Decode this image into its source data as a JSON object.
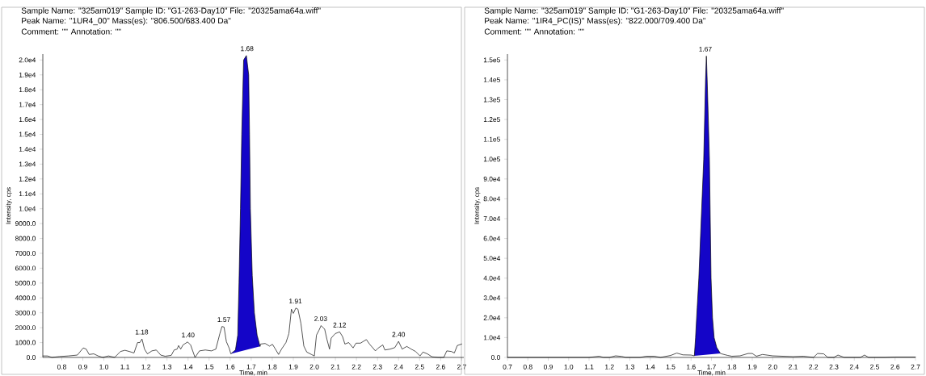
{
  "chart_data": [
    {
      "type": "line",
      "title": "Sample Name: \"325am019\"    Sample ID: \"G1-263-Day10\"    File: \"20325ama64a.wiff\"",
      "subtitle": "Peak Name: \"1UR4_00\"    Mass(es): \"806.500/683.400 Da\"",
      "xlabel": "Time, min",
      "ylabel": "Intensity, cps",
      "annotations": [
        "Comment: \"\"    Annotation: \"\"",
        {
          "text": "1.18",
          "x": 1.18,
          "y": 1240
        },
        {
          "text": "1.40",
          "x": 1.4,
          "y": 1040
        },
        {
          "text": "1.57",
          "x": 1.57,
          "y": 2080
        },
        {
          "text": "1.68",
          "x": 1.68,
          "y": 20300
        },
        {
          "text": "1.91",
          "x": 1.91,
          "y": 3320
        },
        {
          "text": "2.03",
          "x": 2.03,
          "y": 2140
        },
        {
          "text": "2.12",
          "x": 2.12,
          "y": 1720
        },
        {
          "text": "2.40",
          "x": 2.4,
          "y": 1080
        }
      ],
      "xlim": [
        0.71,
        2.71
      ],
      "ylim": [
        0,
        20400
      ],
      "xticks": [
        {
          "value": 0.8,
          "label": "0.8"
        },
        {
          "value": 0.9,
          "label": "0.9"
        },
        {
          "value": 1.0,
          "label": "1.0"
        },
        {
          "value": 1.1,
          "label": "1.1"
        },
        {
          "value": 1.2,
          "label": "1.2"
        },
        {
          "value": 1.3,
          "label": "1.3"
        },
        {
          "value": 1.4,
          "label": "1.4"
        },
        {
          "value": 1.5,
          "label": "1.5"
        },
        {
          "value": 1.6,
          "label": "1.6"
        },
        {
          "value": 1.7,
          "label": "1.7"
        },
        {
          "value": 1.8,
          "label": "1.8"
        },
        {
          "value": 1.9,
          "label": "1.9"
        },
        {
          "value": 2.0,
          "label": "2.0"
        },
        {
          "value": 2.1,
          "label": "2.1"
        },
        {
          "value": 2.2,
          "label": "2.2"
        },
        {
          "value": 2.3,
          "label": "2.3"
        },
        {
          "value": 2.4,
          "label": "2.4"
        },
        {
          "value": 2.5,
          "label": "2.5"
        },
        {
          "value": 2.6,
          "label": "2.6"
        },
        {
          "value": 2.7,
          "label": "2.7"
        }
      ],
      "yticks": [
        {
          "value": 0,
          "label": "0.0"
        },
        {
          "value": 1000,
          "label": "1000.0"
        },
        {
          "value": 2000,
          "label": "2000.0"
        },
        {
          "value": 3000,
          "label": "3000.0"
        },
        {
          "value": 4000,
          "label": "4000.0"
        },
        {
          "value": 5000,
          "label": "5000.0"
        },
        {
          "value": 6000,
          "label": "6000.0"
        },
        {
          "value": 7000,
          "label": "7000.0"
        },
        {
          "value": 8000,
          "label": "8000.0"
        },
        {
          "value": 9000,
          "label": "9000.0"
        },
        {
          "value": 10000,
          "label": "1.0e4"
        },
        {
          "value": 11000,
          "label": "1.1e4"
        },
        {
          "value": 12000,
          "label": "1.2e4"
        },
        {
          "value": 13000,
          "label": "1.3e4"
        },
        {
          "value": 14000,
          "label": "1.4e4"
        },
        {
          "value": 15000,
          "label": "1.5e4"
        },
        {
          "value": 16000,
          "label": "1.6e4"
        },
        {
          "value": 17000,
          "label": "1.7e4"
        },
        {
          "value": 18000,
          "label": "1.8e4"
        },
        {
          "value": 19000,
          "label": "1.9e4"
        },
        {
          "value": 20000,
          "label": "2.0e4"
        }
      ],
      "series": [
        {
          "type": "area",
          "color": "#1405c8",
          "x": [
            1.603,
            1.625,
            1.636,
            1.642,
            1.649,
            1.655,
            1.664,
            1.677,
            1.688,
            1.692,
            1.696,
            1.705,
            1.715,
            1.728,
            1.742
          ],
          "values": [
            240,
            500,
            1500,
            5000,
            10000,
            15000,
            20000,
            20300,
            19000,
            15000,
            10000,
            5500,
            3000,
            1500,
            740
          ]
        },
        {
          "color": "#000000",
          "x": [
            0.711,
            0.732,
            0.753,
            0.789,
            0.831,
            0.874,
            0.902,
            0.916,
            0.93,
            0.952,
            0.973,
            0.994,
            1.022,
            1.051,
            1.079,
            1.1,
            1.121,
            1.143,
            1.16,
            1.171,
            1.181,
            1.193,
            1.207,
            1.228,
            1.249,
            1.27,
            1.291,
            1.32,
            1.334,
            1.348,
            1.355,
            1.365,
            1.376,
            1.398,
            1.412,
            1.433,
            1.454,
            1.482,
            1.511,
            1.532,
            1.551,
            1.561,
            1.571,
            1.582,
            1.596,
            1.603,
            1.625,
            1.636,
            1.642,
            1.649,
            1.655,
            1.664,
            1.677,
            1.688,
            1.692,
            1.696,
            1.705,
            1.715,
            1.728,
            1.742,
            1.745,
            1.766,
            1.787,
            1.801,
            1.815,
            1.83,
            1.844,
            1.865,
            1.879,
            1.891,
            1.9,
            1.912,
            1.922,
            1.936,
            1.95,
            1.964,
            1.986,
            2.0,
            2.01,
            2.021,
            2.032,
            2.049,
            2.06,
            2.072,
            2.08,
            2.099,
            2.12,
            2.134,
            2.145,
            2.163,
            2.184,
            2.198,
            2.219,
            2.247,
            2.262,
            2.29,
            2.304,
            2.325,
            2.335,
            2.36,
            2.382,
            2.4,
            2.417,
            2.439,
            2.46,
            2.481,
            2.502,
            2.516,
            2.537,
            2.559,
            2.587,
            2.615,
            2.629,
            2.651,
            2.665,
            2.679,
            2.7
          ],
          "values": [
            100,
            100,
            0,
            60,
            100,
            160,
            640,
            560,
            200,
            240,
            100,
            0,
            100,
            0,
            400,
            480,
            400,
            300,
            1000,
            1000,
            1240,
            560,
            240,
            440,
            500,
            160,
            80,
            140,
            500,
            560,
            800,
            560,
            840,
            1040,
            840,
            0,
            440,
            500,
            440,
            560,
            1600,
            2080,
            2040,
            1060,
            600,
            240,
            500,
            1500,
            5000,
            10000,
            15000,
            20000,
            20300,
            19000,
            15000,
            10000,
            5500,
            3000,
            1500,
            740,
            900,
            940,
            760,
            880,
            560,
            200,
            560,
            1000,
            1600,
            3240,
            2960,
            3320,
            3240,
            2300,
            760,
            360,
            200,
            100,
            1500,
            1800,
            2140,
            1900,
            1200,
            560,
            1300,
            1600,
            1720,
            1400,
            900,
            1000,
            640,
            960,
            960,
            1200,
            900,
            440,
            640,
            840,
            500,
            560,
            660,
            1080,
            560,
            740,
            560,
            400,
            100,
            360,
            240,
            40,
            0,
            0,
            440,
            400,
            300,
            800,
            900
          ]
        }
      ]
    },
    {
      "type": "line",
      "title": "Sample Name: \"325am019\"    Sample ID: \"G1-263-Day10\"    File: \"20325ama64a.wiff\"",
      "subtitle": "Peak Name: \"1IR4_PC(IS)\"    Mass(es): \"822.000/709.400 Da\"",
      "xlabel": "Time, min",
      "ylabel": "Intensity, cps",
      "annotations": [
        "Comment: \"\"    Annotation: \"\"",
        {
          "text": "1.67",
          "x": 1.67,
          "y": 152000
        }
      ],
      "xlim": [
        0.7,
        2.7
      ],
      "ylim": [
        0,
        153000
      ],
      "xticks": [
        {
          "value": 0.7,
          "label": "0.7"
        },
        {
          "value": 0.8,
          "label": "0.8"
        },
        {
          "value": 0.9,
          "label": "0.9"
        },
        {
          "value": 1.0,
          "label": "1.0"
        },
        {
          "value": 1.1,
          "label": "1.1"
        },
        {
          "value": 1.2,
          "label": "1.2"
        },
        {
          "value": 1.3,
          "label": "1.3"
        },
        {
          "value": 1.4,
          "label": "1.4"
        },
        {
          "value": 1.5,
          "label": "1.5"
        },
        {
          "value": 1.6,
          "label": "1.6"
        },
        {
          "value": 1.7,
          "label": "1.7"
        },
        {
          "value": 1.8,
          "label": "1.8"
        },
        {
          "value": 1.9,
          "label": "1.9"
        },
        {
          "value": 2.0,
          "label": "2.0"
        },
        {
          "value": 2.1,
          "label": "2.1"
        },
        {
          "value": 2.2,
          "label": "2.2"
        },
        {
          "value": 2.3,
          "label": "2.3"
        },
        {
          "value": 2.4,
          "label": "2.4"
        },
        {
          "value": 2.5,
          "label": "2.5"
        },
        {
          "value": 2.6,
          "label": "2.6"
        },
        {
          "value": 2.7,
          "label": "2.7"
        }
      ],
      "yticks": [
        {
          "value": 0,
          "label": "0.0"
        },
        {
          "value": 10000,
          "label": "1.0e4"
        },
        {
          "value": 20000,
          "label": "2.0e4"
        },
        {
          "value": 30000,
          "label": "3.0e4"
        },
        {
          "value": 40000,
          "label": "4.0e4"
        },
        {
          "value": 50000,
          "label": "5.0e4"
        },
        {
          "value": 60000,
          "label": "6.0e4"
        },
        {
          "value": 70000,
          "label": "7.0e4"
        },
        {
          "value": 80000,
          "label": "8.0e4"
        },
        {
          "value": 90000,
          "label": "9.0e4"
        },
        {
          "value": 100000,
          "label": "1.0e5"
        },
        {
          "value": 110000,
          "label": "1.1e5"
        },
        {
          "value": 120000,
          "label": "1.2e5"
        },
        {
          "value": 130000,
          "label": "1.3e5"
        },
        {
          "value": 140000,
          "label": "1.4e5"
        },
        {
          "value": 150000,
          "label": "1.5e5"
        }
      ],
      "series": [
        {
          "type": "area",
          "color": "#1405c8",
          "x": [
            1.616,
            1.622,
            1.63,
            1.638,
            1.662,
            1.671,
            1.675,
            1.679,
            1.69,
            1.698,
            1.705,
            1.713,
            1.726,
            1.744
          ],
          "values": [
            800,
            10000,
            25000,
            40000,
            100000,
            140000,
            152000,
            140000,
            100000,
            40000,
            20000,
            10000,
            5000,
            2000
          ]
        },
        {
          "color": "#000000",
          "x": [
            0.7,
            1.1,
            1.15,
            1.17,
            1.2,
            1.23,
            1.26,
            1.28,
            1.35,
            1.38,
            1.42,
            1.45,
            1.5,
            1.53,
            1.56,
            1.6,
            1.616,
            1.622,
            1.63,
            1.638,
            1.662,
            1.671,
            1.675,
            1.679,
            1.69,
            1.698,
            1.705,
            1.713,
            1.726,
            1.744,
            1.75,
            1.78,
            1.8,
            1.84,
            1.88,
            1.9,
            1.92,
            1.95,
            2.0,
            2.05,
            2.1,
            2.15,
            2.2,
            2.22,
            2.25,
            2.27,
            2.3,
            2.32,
            2.35,
            2.43,
            2.45,
            2.47,
            2.55,
            2.6,
            2.7
          ],
          "values": [
            0,
            0,
            600,
            0,
            0,
            800,
            500,
            0,
            0,
            600,
            600,
            0,
            1000,
            2200,
            1300,
            1200,
            800,
            10000,
            25000,
            40000,
            100000,
            140000,
            152000,
            140000,
            100000,
            40000,
            20000,
            10000,
            5000,
            2000,
            1800,
            1000,
            600,
            800,
            2000,
            2000,
            600,
            1500,
            800,
            600,
            400,
            600,
            0,
            2000,
            1800,
            0,
            0,
            1200,
            0,
            0,
            1200,
            0,
            0,
            200,
            200
          ]
        }
      ]
    }
  ]
}
